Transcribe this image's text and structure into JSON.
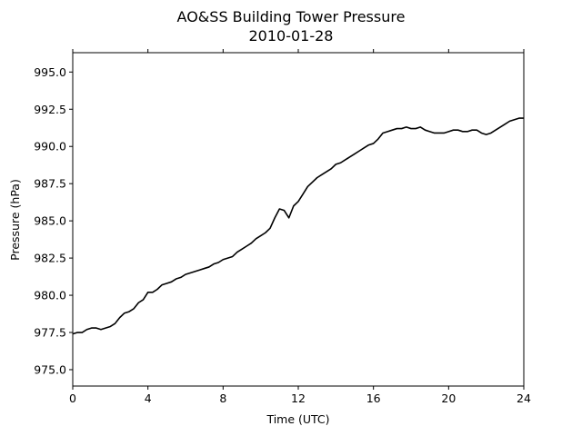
{
  "chart_data": {
    "type": "line",
    "title": "AO&SS Building Tower Pressure",
    "subtitle": "2010-01-28",
    "xlabel": "Time (UTC)",
    "ylabel": "Pressure (hPa)",
    "xlim": [
      0,
      24
    ],
    "ylim": [
      973.9,
      996.3
    ],
    "xticks": [
      0,
      4,
      8,
      12,
      16,
      20,
      24
    ],
    "xtick_labels": [
      "0",
      "4",
      "8",
      "12",
      "16",
      "20",
      "24"
    ],
    "yticks": [
      975.0,
      977.5,
      980.0,
      982.5,
      985.0,
      987.5,
      990.0,
      992.5,
      995.0
    ],
    "ytick_labels": [
      "975.0",
      "977.5",
      "980.0",
      "982.5",
      "985.0",
      "987.5",
      "990.0",
      "992.5",
      "995.0"
    ],
    "grid": false,
    "line_color": "#000000",
    "series": [
      {
        "x": [
          0,
          0.25,
          0.5,
          0.75,
          1.0,
          1.25,
          1.5,
          1.75,
          2.0,
          2.25,
          2.5,
          2.75,
          3.0,
          3.25,
          3.5,
          3.75,
          4.0,
          4.25,
          4.5,
          4.75,
          5.0,
          5.25,
          5.5,
          5.75,
          6.0,
          6.25,
          6.5,
          6.75,
          7.0,
          7.25,
          7.5,
          7.75,
          8.0,
          8.25,
          8.5,
          8.75,
          9.0,
          9.25,
          9.5,
          9.75,
          10.0,
          10.25,
          10.5,
          10.75,
          11.0,
          11.25,
          11.5,
          11.75,
          12.0,
          12.25,
          12.5,
          12.75,
          13.0,
          13.25,
          13.5,
          13.75,
          14.0,
          14.25,
          14.5,
          14.75,
          15.0,
          15.25,
          15.5,
          15.75,
          16.0,
          16.25,
          16.5,
          16.75,
          17.0,
          17.25,
          17.5,
          17.75,
          18.0,
          18.25,
          18.5,
          18.75,
          19.0,
          19.25,
          19.5,
          19.75,
          20.0,
          20.25,
          20.5,
          20.75,
          21.0,
          21.25,
          21.5,
          21.75,
          22.0,
          22.25,
          22.5,
          22.75,
          23.0,
          23.25,
          23.5,
          23.75,
          24.0
        ],
        "values": [
          977.4,
          977.5,
          977.5,
          977.7,
          977.8,
          977.8,
          977.7,
          977.8,
          977.9,
          978.1,
          978.5,
          978.8,
          978.9,
          979.1,
          979.5,
          979.7,
          980.2,
          980.2,
          980.4,
          980.7,
          980.8,
          980.9,
          981.1,
          981.2,
          981.4,
          981.5,
          981.6,
          981.7,
          981.8,
          981.9,
          982.1,
          982.2,
          982.4,
          982.5,
          982.6,
          982.9,
          983.1,
          983.3,
          983.5,
          983.8,
          984.0,
          984.2,
          984.5,
          985.2,
          985.8,
          985.7,
          985.2,
          986.0,
          986.3,
          986.8,
          987.3,
          987.6,
          987.9,
          988.1,
          988.3,
          988.5,
          988.8,
          988.9,
          989.1,
          989.3,
          989.5,
          989.7,
          989.9,
          990.1,
          990.2,
          990.5,
          990.9,
          991.0,
          991.1,
          991.2,
          991.2,
          991.3,
          991.2,
          991.2,
          991.3,
          991.1,
          991.0,
          990.9,
          990.9,
          990.9,
          991.0,
          991.1,
          991.1,
          991.0,
          991.0,
          991.1,
          991.1,
          990.9,
          990.8,
          990.9,
          991.1,
          991.3,
          991.5,
          991.7,
          991.8,
          991.9,
          991.9
        ]
      }
    ]
  }
}
